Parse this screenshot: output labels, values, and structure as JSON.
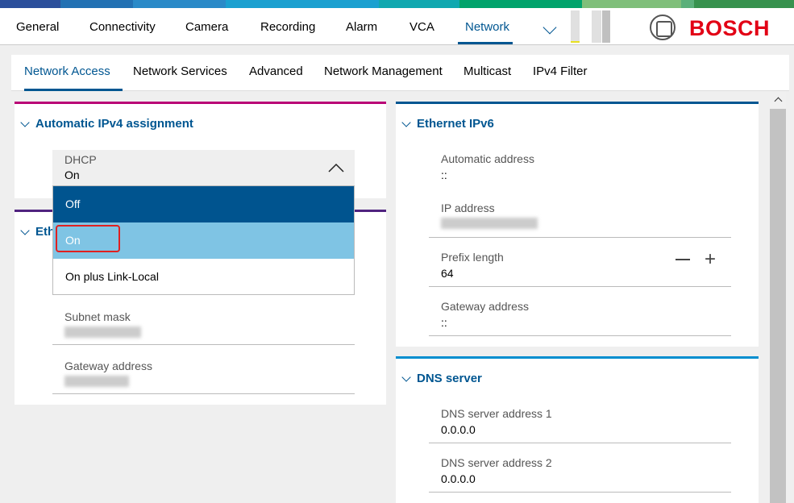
{
  "nav": {
    "items": [
      "General",
      "Connectivity",
      "Camera",
      "Recording",
      "Alarm",
      "VCA",
      "Network"
    ],
    "active": "Network",
    "brand": "BOSCH"
  },
  "subtabs": {
    "items": [
      "Network Access",
      "Network Services",
      "Advanced",
      "Network Management",
      "Multicast",
      "IPv4 Filter"
    ],
    "active": "Network Access"
  },
  "ipv4": {
    "title": "Automatic IPv4 assignment",
    "dhcp_label": "DHCP",
    "dhcp_value": "On",
    "options": [
      "Off",
      "On",
      "On plus Link-Local"
    ],
    "hovered": "On"
  },
  "ethernet": {
    "title": "Eth",
    "subnet_label": "Subnet mask",
    "gateway_label": "Gateway address"
  },
  "ipv6": {
    "title": "Ethernet IPv6",
    "auto_label": "Automatic address",
    "auto_value": "::",
    "ip_label": "IP address",
    "prefix_label": "Prefix length",
    "prefix_value": "64",
    "gateway_label": "Gateway address",
    "gateway_value": "::"
  },
  "dns": {
    "title": "DNS server",
    "addr1_label": "DNS server address 1",
    "addr1_value": "0.0.0.0",
    "addr2_label": "DNS server address 2",
    "addr2_value": "0.0.0.0"
  },
  "colors": {
    "accent": "#005691",
    "brand": "#e20015",
    "ipv4_border": "#b90276",
    "ethernet_border": "#50237f",
    "ipv6_border": "#005691",
    "dns_border": "#008ecf",
    "option_selected": "#00548f",
    "option_hover": "#7fc4e4"
  }
}
